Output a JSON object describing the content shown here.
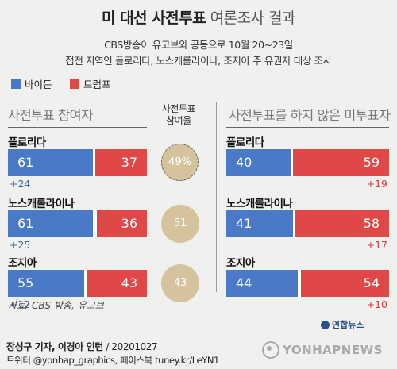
{
  "title": {
    "bold": "미 대선 사전투표",
    "normal": "여론조사 결과"
  },
  "subtitle": [
    "CBS방송이 유고브와 공동으로 10월 20~23일",
    "접전 지역인 플로리다, 노스캐롤라이나, 조지아 주 유권자 대상 조사"
  ],
  "legend": [
    {
      "label": "바이든",
      "color": "#4a7ac6"
    },
    {
      "label": "트럼프",
      "color": "#e04848"
    }
  ],
  "panels": {
    "left": {
      "title": "사전투표 참여자",
      "turnout_label": "사전투표\n참여율"
    },
    "right": {
      "title": "사전투표를 하지 않은 미투표자"
    }
  },
  "chart_data": {
    "type": "bar",
    "layout": "stacked-horizontal",
    "title": "미 대선 사전투표 여론조사 결과",
    "categories": [
      "플로리다",
      "노스캐롤라이나",
      "조지아"
    ],
    "panels": [
      {
        "title": "사전투표 참여자",
        "series": [
          {
            "name": "바이든",
            "values": [
              61,
              61,
              55
            ],
            "color": "#4a7ac6"
          },
          {
            "name": "트럼프",
            "values": [
              37,
              36,
              43
            ],
            "color": "#e04848"
          }
        ],
        "margins": [
          "+24",
          "+25",
          "+12"
        ],
        "margin_leader": [
          "바이든",
          "바이든",
          "바이든"
        ],
        "turnout": [
          49,
          51,
          43
        ],
        "turnout_labels": [
          "49%",
          "51",
          "43"
        ]
      },
      {
        "title": "사전투표를 하지 않은 미투표자",
        "series": [
          {
            "name": "바이든",
            "values": [
              40,
              41,
              44
            ],
            "color": "#4a7ac6"
          },
          {
            "name": "트럼프",
            "values": [
              59,
              58,
              54
            ],
            "color": "#e04848"
          }
        ],
        "margins": [
          "+19",
          "+17",
          "+10"
        ],
        "margin_leader": [
          "트럼프",
          "트럼프",
          "트럼프"
        ]
      }
    ]
  },
  "source": "자료/ CBS 방송, 유고브",
  "credit": {
    "authors": "장성구 기자, 이경아 인턴",
    "date": " / 20201027"
  },
  "credit2": "트위터 @yonhap_graphics, 페이스북 tuney.kr/LeYN1",
  "logo_small": "연합뉴스",
  "logo_big": "YONHAPNEWS"
}
